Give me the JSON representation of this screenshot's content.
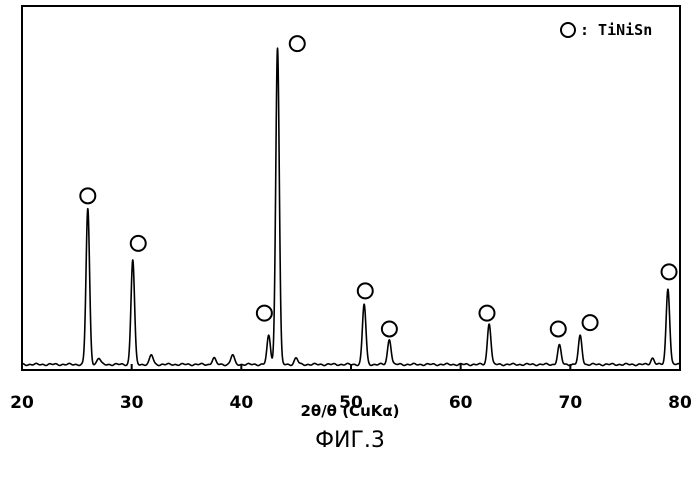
{
  "chart_data": {
    "type": "line",
    "title": "",
    "xlabel": "2θ/θ (CuKα)",
    "ylabel": "",
    "xlim": [
      20,
      80
    ],
    "ylim": [
      0,
      100
    ],
    "x_ticks": [
      20,
      30,
      40,
      50,
      60,
      70,
      80
    ],
    "y_ticks": [],
    "grid": false,
    "legend": {
      "position": "top-right",
      "marker": "circle",
      "text": ": TiNiSn"
    },
    "series": [
      {
        "peaks": [
          {
            "x": 26.0,
            "y": 49
          },
          {
            "x": 30.1,
            "y": 33
          },
          {
            "x": 42.5,
            "y": 9
          },
          {
            "x": 43.3,
            "y": 100
          },
          {
            "x": 51.2,
            "y": 19
          },
          {
            "x": 53.5,
            "y": 8
          },
          {
            "x": 62.6,
            "y": 13
          },
          {
            "x": 69.0,
            "y": 6
          },
          {
            "x": 70.9,
            "y": 9
          },
          {
            "x": 78.9,
            "y": 24
          },
          {
            "x": 27.0,
            "y": 2
          },
          {
            "x": 31.8,
            "y": 3
          },
          {
            "x": 37.5,
            "y": 2
          },
          {
            "x": 39.2,
            "y": 3
          },
          {
            "x": 45.0,
            "y": 2
          },
          {
            "x": 77.5,
            "y": 2
          }
        ]
      }
    ],
    "markers": {
      "label": "TiNiSn",
      "points": [
        {
          "x": 26.0,
          "y": 54
        },
        {
          "x": 30.6,
          "y": 39
        },
        {
          "x": 42.1,
          "y": 17
        },
        {
          "x": 45.1,
          "y": 102
        },
        {
          "x": 51.3,
          "y": 24
        },
        {
          "x": 53.5,
          "y": 12
        },
        {
          "x": 62.4,
          "y": 17
        },
        {
          "x": 68.9,
          "y": 12
        },
        {
          "x": 71.8,
          "y": 14
        },
        {
          "x": 79.0,
          "y": 30
        }
      ]
    }
  },
  "figure": {
    "caption": "ФИГ.3"
  }
}
